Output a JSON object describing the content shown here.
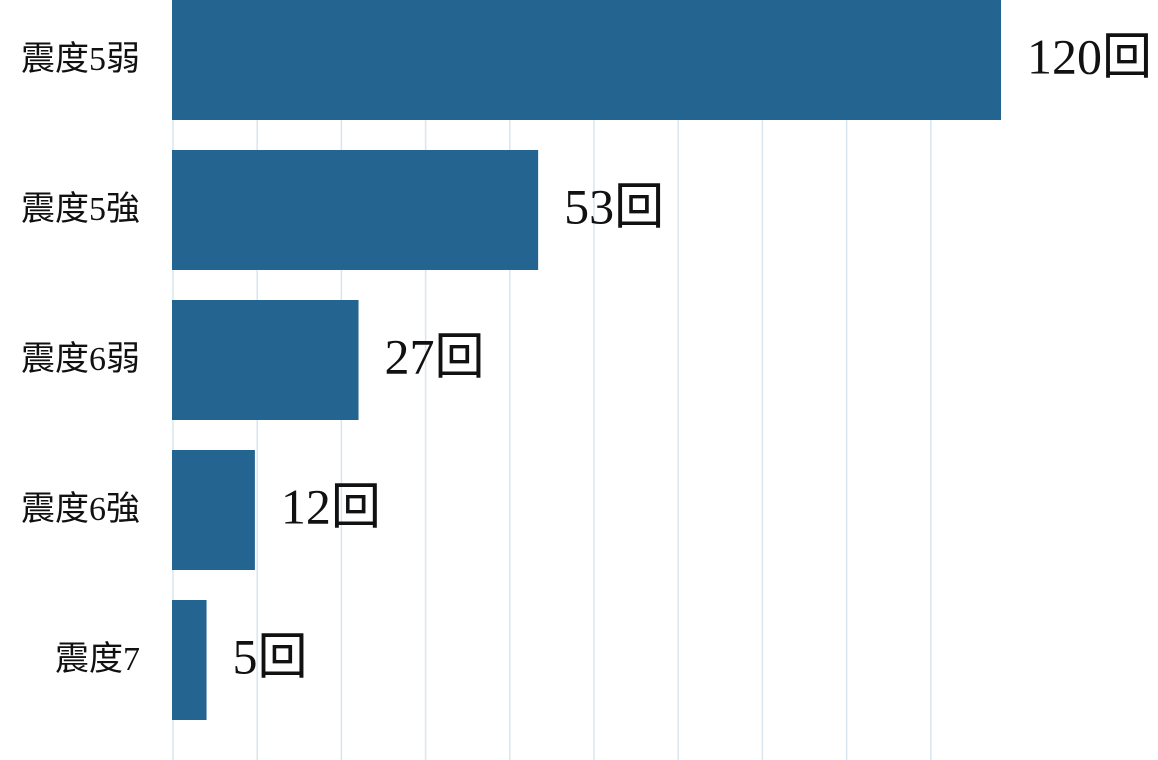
{
  "chart_data": {
    "type": "bar",
    "orientation": "horizontal",
    "categories": [
      "震度5弱",
      "震度5強",
      "震度6弱",
      "震度6強",
      "震度7"
    ],
    "values": [
      120,
      53,
      27,
      12,
      5
    ],
    "value_labels": [
      "120回",
      "53回",
      "27回",
      "12回",
      "5回"
    ],
    "color": "#246491",
    "xlim": [
      0,
      120
    ],
    "grid": true
  }
}
